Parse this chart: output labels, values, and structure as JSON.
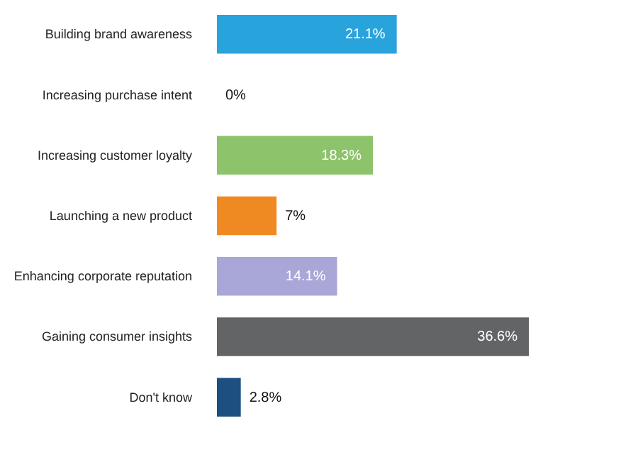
{
  "chart_data": {
    "type": "bar",
    "orientation": "horizontal",
    "categories": [
      "Building brand awareness",
      "Increasing purchase intent",
      "Increasing customer loyalty",
      "Launching a new product",
      "Enhancing corporate reputation",
      "Gaining consumer insights",
      "Don't know"
    ],
    "values": [
      21.1,
      0,
      18.3,
      7,
      14.1,
      36.6,
      2.8
    ],
    "colors": [
      "#29a3dc",
      "#29a3dc",
      "#8cc36b",
      "#ef8a23",
      "#a9a6d8",
      "#636466",
      "#1d4f80"
    ],
    "value_labels": [
      "21.1%",
      "0%",
      "18.3%",
      "7%",
      "14.1%",
      "36.6%",
      "2.8%"
    ]
  }
}
